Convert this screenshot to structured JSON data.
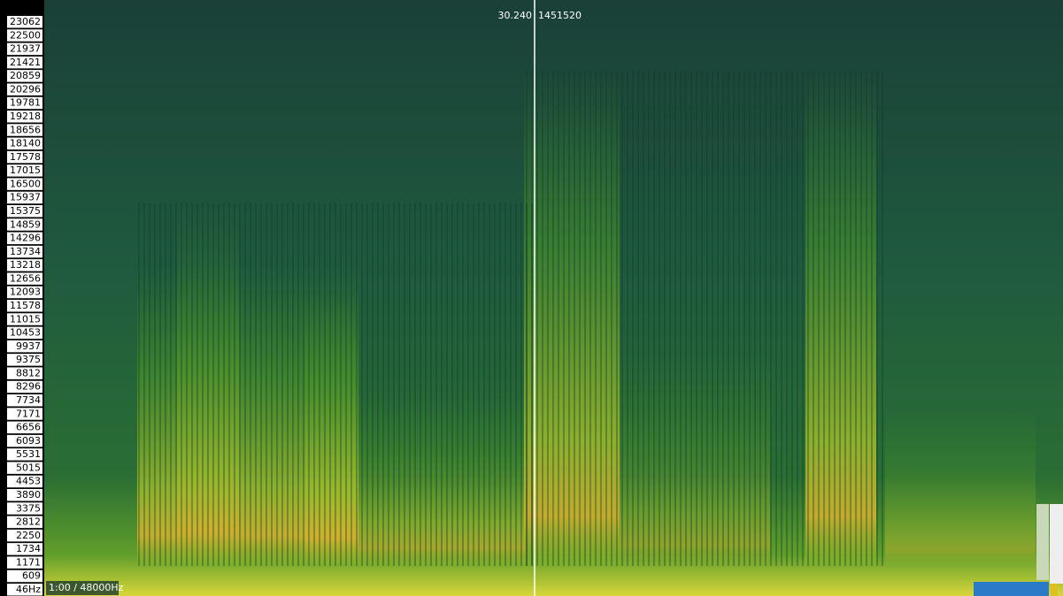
{
  "frequency_labels": [
    "23062",
    "22500",
    "21937",
    "21421",
    "20859",
    "20296",
    "19781",
    "19218",
    "18656",
    "18140",
    "17578",
    "17015",
    "16500",
    "15937",
    "15375",
    "14859",
    "14296",
    "13734",
    "13218",
    "12656",
    "12093",
    "11578",
    "11015",
    "10453",
    "9937",
    "9375",
    "8812",
    "8296",
    "7734",
    "7171",
    "6656",
    "6093",
    "5531",
    "5015",
    "4453",
    "3890",
    "3375",
    "2812",
    "2250",
    "1734",
    "1171",
    "609",
    "46Hz"
  ],
  "cursor": {
    "time": "30.240",
    "sample": "1451520"
  },
  "status": "1:00 / 48000Hz"
}
